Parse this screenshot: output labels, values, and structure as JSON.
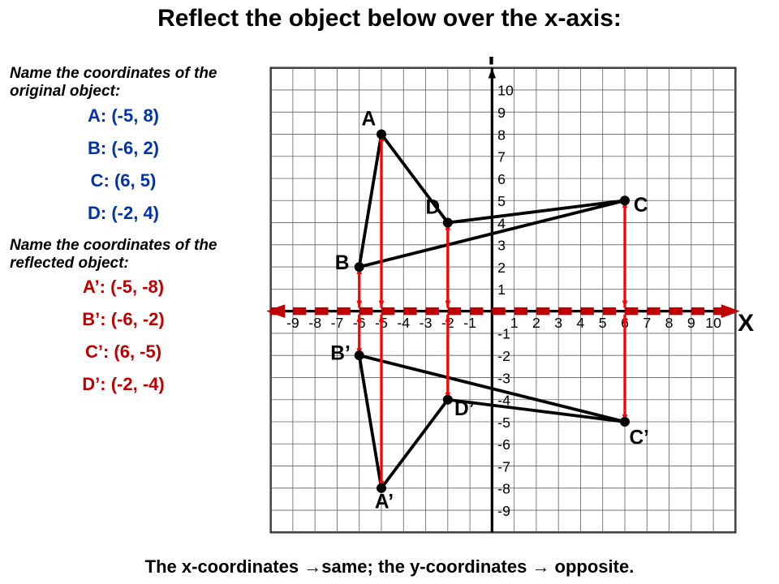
{
  "title": "Reflect the object below over the x-axis:",
  "header_original": "Name the coordinates of the original object:",
  "header_reflected": "Name the coordinates of the reflected object:",
  "footer": "The x-coordinates →same; the y-coordinates → opposite.",
  "original_color": "#0033aa",
  "reflected_color": "#c00000",
  "points_original": [
    {
      "label": "A",
      "x": -5,
      "y": 8,
      "text": "A:  (-5, 8)"
    },
    {
      "label": "B",
      "x": -6,
      "y": 2,
      "text": "B:  (-6, 2)"
    },
    {
      "label": "C",
      "x": 6,
      "y": 5,
      "text": "C:  (6, 5)"
    },
    {
      "label": "D",
      "x": -2,
      "y": 4,
      "text": "D:  (-2, 4)"
    }
  ],
  "points_reflected": [
    {
      "label": "A’",
      "x": -5,
      "y": -8,
      "text": "A’:  (-5, -8)"
    },
    {
      "label": "B’",
      "x": -6,
      "y": -2,
      "text": "B’:  (-6, -2)"
    },
    {
      "label": "C’",
      "x": 6,
      "y": -5,
      "text": "C’:  (6, -5)"
    },
    {
      "label": "D’",
      "x": -2,
      "y": -4,
      "text": "D’:  (-2, -4)"
    }
  ],
  "grid": {
    "x_min": -10,
    "x_max": 11,
    "y_min": -10,
    "y_max": 11,
    "grid_color": "#606060",
    "grid_width": 0.03,
    "axis_color": "#000000",
    "axis_width": 0.12,
    "tick_font_size": 0.65,
    "background": "#ffffff"
  },
  "shape_edges": [
    [
      "A",
      "B"
    ],
    [
      "B",
      "C"
    ],
    [
      "C",
      "D"
    ],
    [
      "D",
      "A"
    ]
  ],
  "shape_stroke": "#000000",
  "shape_stroke_width": 0.14,
  "point_radius": 0.22,
  "reflection_axis": {
    "color": "#c00000",
    "dash": "0.6,0.4",
    "width": 0.35,
    "arrow_size": 0.9
  },
  "map_arrows_color": "#ff0000",
  "map_arrows_width": 0.12,
  "label_font_size": 0.9,
  "point_label_offsets": {
    "A": [
      -0.9,
      0.7
    ],
    "B": [
      -1.1,
      0.2
    ],
    "C": [
      0.4,
      -0.2
    ],
    "D": [
      -1.0,
      0.7
    ],
    "A’": [
      -0.3,
      -0.6
    ],
    "B’": [
      -1.3,
      0.1
    ],
    "C’": [
      0.2,
      -0.7
    ],
    "D’": [
      0.3,
      -0.4
    ]
  }
}
